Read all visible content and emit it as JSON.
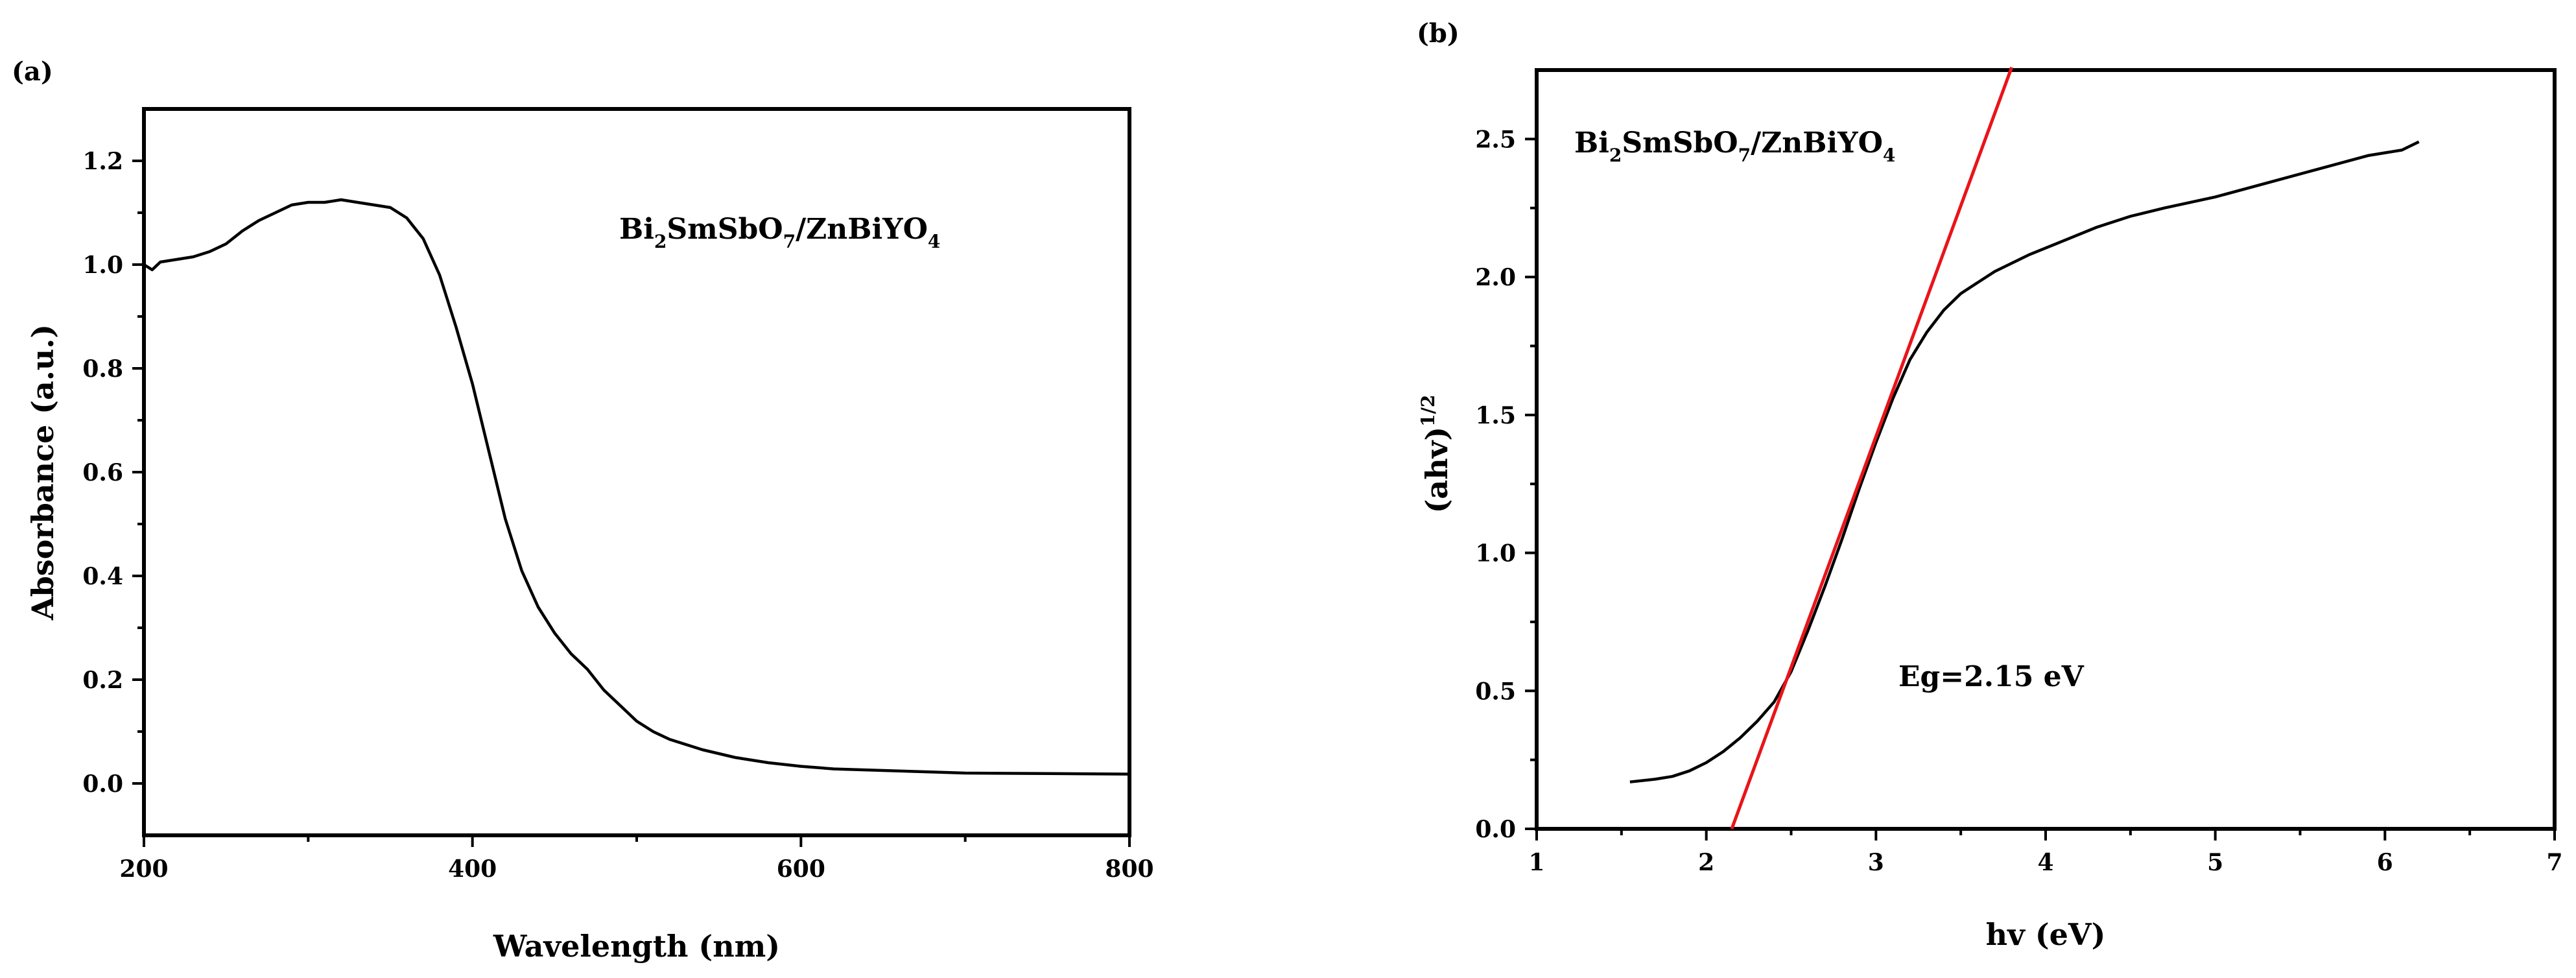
{
  "chart_data": [
    {
      "type": "line",
      "panel_label": "(a)",
      "xlabel": "Wavelength (nm)",
      "ylabel": "Absorbance (a.u.)",
      "xlim": [
        200,
        800
      ],
      "ylim": [
        -0.1,
        1.3
      ],
      "xticks": [
        200,
        400,
        600,
        800
      ],
      "xtick_labels": [
        "200",
        "400",
        "600",
        "800"
      ],
      "yticks": [
        0.0,
        0.2,
        0.4,
        0.6,
        0.8,
        1.0,
        1.2
      ],
      "ytick_labels": [
        "0.0",
        "0.2",
        "0.4",
        "0.6",
        "0.8",
        "1.0",
        "1.2"
      ],
      "grid": false,
      "annotation": {
        "parts": [
          [
            "Bi",
            ""
          ],
          [
            "2",
            "sub"
          ],
          [
            "SmSbO",
            ""
          ],
          [
            "7",
            "sub"
          ],
          [
            "/ZnBiYO",
            ""
          ],
          [
            "4",
            "sub"
          ]
        ]
      },
      "series": [
        {
          "x": [
            200,
            205,
            210,
            220,
            230,
            240,
            250,
            260,
            270,
            280,
            290,
            300,
            310,
            320,
            330,
            340,
            350,
            360,
            370,
            380,
            390,
            400,
            410,
            420,
            430,
            440,
            450,
            460,
            470,
            480,
            490,
            500,
            510,
            520,
            540,
            560,
            580,
            600,
            620,
            650,
            680,
            700,
            750,
            800
          ],
          "y": [
            1.0,
            0.99,
            1.005,
            1.01,
            1.015,
            1.025,
            1.04,
            1.065,
            1.085,
            1.1,
            1.115,
            1.12,
            1.12,
            1.125,
            1.12,
            1.115,
            1.11,
            1.09,
            1.05,
            0.98,
            0.88,
            0.77,
            0.64,
            0.51,
            0.41,
            0.34,
            0.29,
            0.25,
            0.22,
            0.18,
            0.15,
            0.12,
            0.1,
            0.085,
            0.065,
            0.05,
            0.04,
            0.033,
            0.028,
            0.025,
            0.022,
            0.02,
            0.019,
            0.018
          ]
        }
      ]
    },
    {
      "type": "line",
      "panel_label": "(b)",
      "xlabel": "hv (eV)",
      "ylabel": "(ahv)",
      "ylabel_sup": "1/2",
      "xlim": [
        1,
        7
      ],
      "ylim": [
        0.0,
        2.75
      ],
      "xticks": [
        1,
        2,
        3,
        4,
        5,
        6,
        7
      ],
      "xtick_labels": [
        "1",
        "2",
        "3",
        "4",
        "5",
        "6",
        "7"
      ],
      "yticks": [
        0.0,
        0.5,
        1.0,
        1.5,
        2.0,
        2.5
      ],
      "ytick_labels": [
        "0.0",
        "0.5",
        "1.0",
        "1.5",
        "2.0",
        "2.5"
      ],
      "grid": false,
      "annotation": {
        "parts": [
          [
            "Bi",
            ""
          ],
          [
            "2",
            "sub"
          ],
          [
            "SmSbO",
            ""
          ],
          [
            "7",
            "sub"
          ],
          [
            "/ZnBiYO",
            ""
          ],
          [
            "4",
            "sub"
          ]
        ]
      },
      "eg_label": "Eg=2.15 eV",
      "series": [
        {
          "x": [
            1.55,
            1.7,
            1.8,
            1.9,
            2.0,
            2.1,
            2.2,
            2.3,
            2.4,
            2.5,
            2.6,
            2.7,
            2.8,
            2.9,
            3.0,
            3.1,
            3.2,
            3.3,
            3.4,
            3.5,
            3.7,
            3.9,
            4.1,
            4.3,
            4.5,
            4.7,
            5.0,
            5.3,
            5.6,
            5.9,
            6.0,
            6.1,
            6.2
          ],
          "y": [
            0.17,
            0.18,
            0.19,
            0.21,
            0.24,
            0.28,
            0.33,
            0.39,
            0.46,
            0.57,
            0.72,
            0.88,
            1.05,
            1.23,
            1.4,
            1.56,
            1.7,
            1.8,
            1.88,
            1.94,
            2.02,
            2.08,
            2.13,
            2.18,
            2.22,
            2.25,
            2.29,
            2.34,
            2.39,
            2.44,
            2.45,
            2.46,
            2.49
          ]
        },
        {
          "x": [
            2.15,
            3.8
          ],
          "y": [
            0.0,
            2.76
          ],
          "color": "#e8141a"
        }
      ]
    }
  ]
}
